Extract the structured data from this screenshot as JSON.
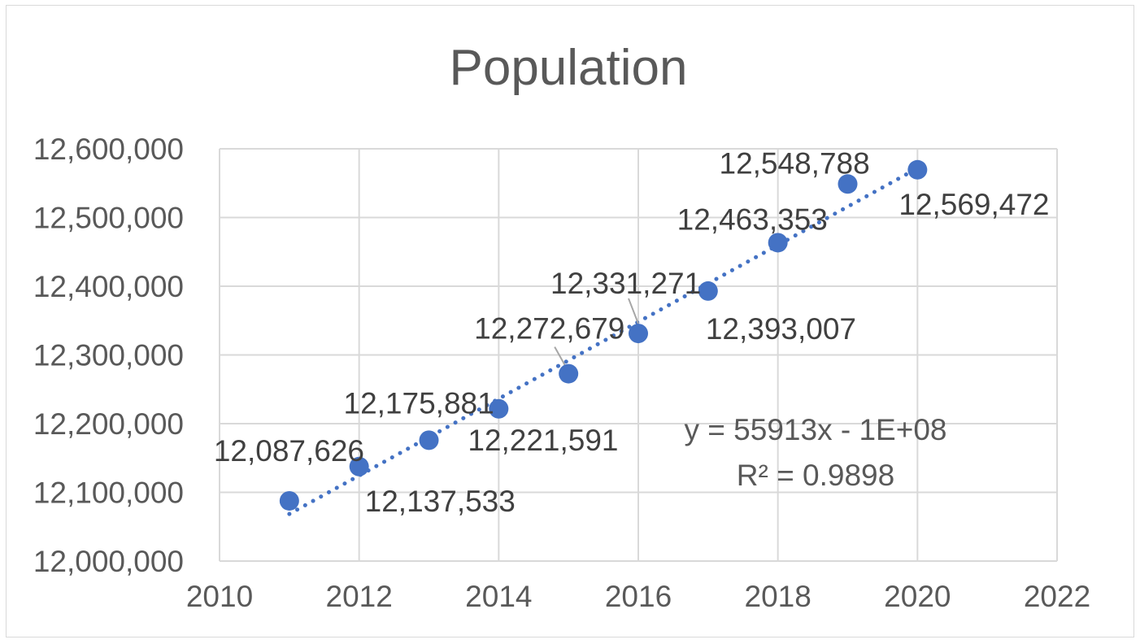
{
  "chart_data": {
    "type": "scatter",
    "title": "Population",
    "xlabel": "",
    "ylabel": "",
    "xlim": [
      2010,
      2022
    ],
    "ylim": [
      12000000,
      12600000
    ],
    "x_ticks": [
      "2010",
      "2012",
      "2014",
      "2016",
      "2018",
      "2020",
      "2022"
    ],
    "y_ticks": [
      "12,000,000",
      "12,100,000",
      "12,200,000",
      "12,300,000",
      "12,400,000",
      "12,500,000",
      "12,600,000"
    ],
    "grid": true,
    "legend": "none",
    "colors": {
      "marker": "#4472c4",
      "trendline": "#4472c4",
      "grid": "#d9d9d9",
      "text": "#595959"
    },
    "series": [
      {
        "x": [
          2011,
          2012,
          2013,
          2014,
          2015,
          2016,
          2017,
          2018,
          2019,
          2020
        ],
        "y": [
          12087626,
          12137533,
          12175881,
          12221591,
          12272679,
          12331271,
          12393007,
          12463353,
          12548788,
          12569472
        ],
        "labels": [
          "12,087,626",
          "12,137,533",
          "12,175,881",
          "12,221,591",
          "12,272,679",
          "12,331,271",
          "12,393,007",
          "12,463,353",
          "12,548,788",
          "12,569,472"
        ]
      }
    ],
    "trendline": {
      "type": "linear",
      "style": "dotted",
      "equation": "y = 55913x - 1E+08",
      "r_squared": "R² = 0.9898"
    }
  }
}
